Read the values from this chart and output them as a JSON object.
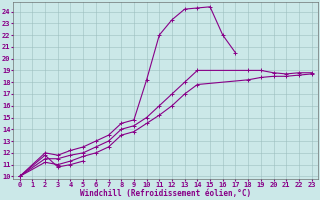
{
  "background_color": "#cbe8e8",
  "grid_color": "#9dbfbf",
  "line_color": "#880088",
  "marker": "+",
  "markersize": 3,
  "linewidth": 0.8,
  "xlabel": "Windchill (Refroidissement éolien,°C)",
  "xlabel_fontsize": 5.5,
  "tick_fontsize": 5,
  "xlim": [
    -0.5,
    23.5
  ],
  "ylim": [
    9.8,
    24.8
  ],
  "yticks": [
    10,
    11,
    12,
    13,
    14,
    15,
    16,
    17,
    18,
    19,
    20,
    21,
    22,
    23,
    24
  ],
  "xticks": [
    0,
    1,
    2,
    3,
    4,
    5,
    6,
    7,
    8,
    9,
    10,
    11,
    12,
    13,
    14,
    15,
    16,
    17,
    18,
    19,
    20,
    21,
    22,
    23
  ],
  "series": [
    {
      "x": [
        0,
        2,
        3,
        4,
        5
      ],
      "y": [
        10,
        11.8,
        10.8,
        11.0,
        11.3
      ]
    },
    {
      "x": [
        0,
        2,
        3,
        4,
        5,
        6,
        7,
        8,
        9,
        10,
        11,
        12,
        13,
        14,
        15,
        16,
        17
      ],
      "y": [
        10,
        12.0,
        11.8,
        12.2,
        12.5,
        13.0,
        13.5,
        14.5,
        14.8,
        18.2,
        22.0,
        23.3,
        24.2,
        24.3,
        24.4,
        22.0,
        20.5
      ]
    },
    {
      "x": [
        0,
        2,
        3,
        4,
        5,
        6,
        7,
        8,
        9,
        10,
        11,
        12,
        13,
        14,
        18,
        19,
        20,
        21,
        22,
        23
      ],
      "y": [
        10,
        11.5,
        11.5,
        11.8,
        12.0,
        12.5,
        13.0,
        14.0,
        14.3,
        15.0,
        16.0,
        17.0,
        18.0,
        19.0,
        19.0,
        19.0,
        18.8,
        18.7,
        18.8,
        18.8
      ]
    },
    {
      "x": [
        0,
        2,
        3,
        4,
        5,
        6,
        7,
        8,
        9,
        10,
        11,
        12,
        13,
        14,
        18,
        19,
        20,
        21,
        22,
        23
      ],
      "y": [
        10,
        11.2,
        11.0,
        11.3,
        11.7,
        12.0,
        12.5,
        13.5,
        13.8,
        14.5,
        15.2,
        16.0,
        17.0,
        17.8,
        18.2,
        18.4,
        18.5,
        18.5,
        18.6,
        18.7
      ]
    }
  ]
}
